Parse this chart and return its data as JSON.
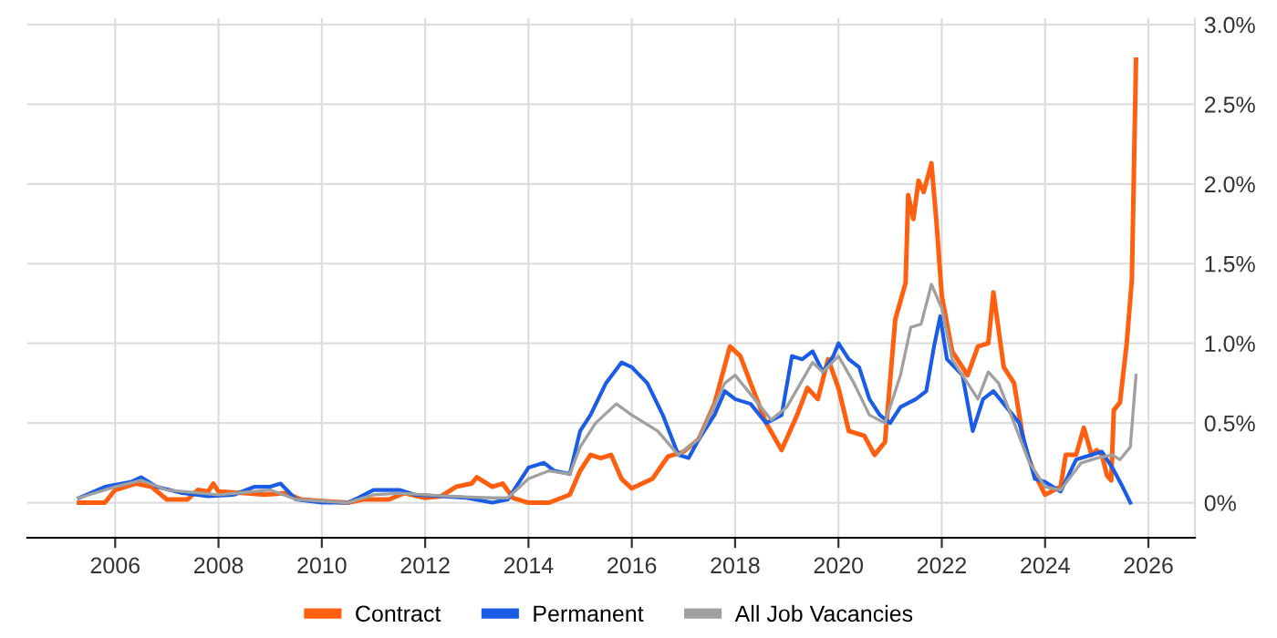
{
  "chart_data": {
    "type": "line",
    "series": [
      {
        "name": "Contract",
        "color": "#ff5f0f",
        "x": [
          2005.3,
          2005.8,
          2006.0,
          2006.4,
          2006.7,
          2007.0,
          2007.4,
          2007.6,
          2007.8,
          2007.9,
          2008.0,
          2008.5,
          2008.9,
          2009.3,
          2009.6,
          2010.0,
          2010.5,
          2010.8,
          2011.3,
          2011.6,
          2012.0,
          2012.3,
          2012.6,
          2012.9,
          2013.0,
          2013.3,
          2013.5,
          2013.7,
          2014.0,
          2014.4,
          2014.8,
          2015.0,
          2015.2,
          2015.4,
          2015.6,
          2015.8,
          2016.0,
          2016.4,
          2016.7,
          2017.0,
          2017.3,
          2017.6,
          2017.9,
          2018.1,
          2018.3,
          2018.6,
          2018.9,
          2019.2,
          2019.4,
          2019.6,
          2019.8,
          2020.0,
          2020.2,
          2020.5,
          2020.7,
          2020.9,
          2021.1,
          2021.3,
          2021.35,
          2021.45,
          2021.55,
          2021.65,
          2021.8,
          2021.9,
          2022.0,
          2022.2,
          2022.5,
          2022.7,
          2022.9,
          2023.0,
          2023.2,
          2023.4,
          2023.6,
          2023.8,
          2024.0,
          2024.3,
          2024.4,
          2024.6,
          2024.75,
          2024.9,
          2025.0,
          2025.1,
          2025.2,
          2025.28,
          2025.33,
          2025.45,
          2025.58,
          2025.68,
          2025.76
        ],
        "values": [
          0,
          0,
          0.08,
          0.12,
          0.1,
          0.02,
          0.02,
          0.08,
          0.07,
          0.12,
          0.07,
          0.06,
          0.05,
          0.06,
          0.02,
          0.01,
          0,
          0.02,
          0.02,
          0.06,
          0.03,
          0.04,
          0.1,
          0.12,
          0.16,
          0.1,
          0.12,
          0.03,
          0,
          0,
          0.05,
          0.2,
          0.3,
          0.28,
          0.3,
          0.15,
          0.09,
          0.15,
          0.29,
          0.32,
          0.4,
          0.62,
          0.98,
          0.92,
          0.75,
          0.5,
          0.33,
          0.55,
          0.72,
          0.65,
          0.9,
          0.72,
          0.45,
          0.42,
          0.3,
          0.38,
          1.15,
          1.38,
          1.93,
          1.78,
          2.02,
          1.95,
          2.13,
          1.75,
          1.3,
          0.95,
          0.8,
          0.98,
          1.0,
          1.32,
          0.85,
          0.75,
          0.35,
          0.18,
          0.05,
          0.1,
          0.3,
          0.3,
          0.47,
          0.3,
          0.33,
          0.3,
          0.17,
          0.14,
          0.58,
          0.63,
          1.0,
          1.4,
          2.78
        ]
      },
      {
        "name": "Permanent",
        "color": "#1a5ce6",
        "x": [
          2005.3,
          2005.8,
          2006.3,
          2006.5,
          2006.8,
          2007.3,
          2007.8,
          2008.3,
          2008.7,
          2009.0,
          2009.2,
          2009.5,
          2010.0,
          2010.5,
          2010.7,
          2011.0,
          2011.5,
          2011.8,
          2012.3,
          2012.8,
          2013.3,
          2013.6,
          2014.0,
          2014.3,
          2014.5,
          2014.8,
          2015.0,
          2015.2,
          2015.5,
          2015.8,
          2016.0,
          2016.3,
          2016.6,
          2016.9,
          2017.1,
          2017.3,
          2017.6,
          2017.8,
          2018.0,
          2018.3,
          2018.6,
          2018.9,
          2019.1,
          2019.3,
          2019.5,
          2019.7,
          2019.9,
          2020.0,
          2020.2,
          2020.4,
          2020.6,
          2020.8,
          2021.0,
          2021.2,
          2021.5,
          2021.7,
          2021.85,
          2021.97,
          2022.1,
          2022.4,
          2022.6,
          2022.8,
          2023.0,
          2023.2,
          2023.5,
          2023.8,
          2024.0,
          2024.3,
          2024.6,
          2024.9,
          2025.1,
          2025.3,
          2025.5,
          2025.65
        ],
        "values": [
          0.03,
          0.1,
          0.13,
          0.16,
          0.1,
          0.06,
          0.04,
          0.05,
          0.1,
          0.1,
          0.12,
          0.02,
          0,
          0,
          0.03,
          0.08,
          0.08,
          0.05,
          0.04,
          0.03,
          0,
          0.02,
          0.22,
          0.25,
          0.2,
          0.18,
          0.45,
          0.55,
          0.75,
          0.88,
          0.85,
          0.75,
          0.55,
          0.3,
          0.28,
          0.4,
          0.55,
          0.7,
          0.65,
          0.62,
          0.5,
          0.55,
          0.92,
          0.9,
          0.95,
          0.82,
          0.92,
          1.0,
          0.9,
          0.85,
          0.65,
          0.55,
          0.5,
          0.6,
          0.65,
          0.7,
          0.98,
          1.17,
          0.9,
          0.8,
          0.45,
          0.65,
          0.7,
          0.62,
          0.5,
          0.15,
          0.13,
          0.07,
          0.27,
          0.3,
          0.32,
          0.22,
          0.1,
          0
        ]
      },
      {
        "name": "All Job Vacancies",
        "color": "#a0a0a0",
        "x": [
          2005.3,
          2006.0,
          2006.5,
          2007.0,
          2008.0,
          2009.0,
          2009.5,
          2010.5,
          2011.0,
          2011.5,
          2012.5,
          2013.3,
          2013.6,
          2014.0,
          2014.4,
          2014.8,
          2015.0,
          2015.3,
          2015.7,
          2016.0,
          2016.5,
          2016.9,
          2017.3,
          2017.8,
          2018.0,
          2018.3,
          2018.7,
          2019.0,
          2019.5,
          2019.7,
          2020.0,
          2020.3,
          2020.6,
          2020.9,
          2021.2,
          2021.4,
          2021.6,
          2021.8,
          2022.0,
          2022.2,
          2022.5,
          2022.7,
          2022.9,
          2023.1,
          2023.4,
          2023.7,
          2024.0,
          2024.3,
          2024.7,
          2025.0,
          2025.3,
          2025.45,
          2025.65,
          2025.76
        ],
        "values": [
          0.03,
          0.1,
          0.14,
          0.08,
          0.05,
          0.08,
          0.02,
          0,
          0.05,
          0.06,
          0.04,
          0.03,
          0.03,
          0.15,
          0.2,
          0.18,
          0.35,
          0.5,
          0.62,
          0.55,
          0.45,
          0.3,
          0.4,
          0.75,
          0.8,
          0.68,
          0.52,
          0.6,
          0.88,
          0.82,
          0.92,
          0.75,
          0.55,
          0.5,
          0.8,
          1.1,
          1.12,
          1.37,
          1.22,
          0.9,
          0.75,
          0.65,
          0.82,
          0.75,
          0.5,
          0.25,
          0.1,
          0.08,
          0.25,
          0.28,
          0.3,
          0.27,
          0.35,
          0.8
        ]
      }
    ],
    "xlim": [
      2004.3,
      2026.9
    ],
    "xticks": [
      2006,
      2008,
      2010,
      2012,
      2014,
      2016,
      2018,
      2020,
      2022,
      2024,
      2026
    ],
    "ylim": [
      -0.22,
      3.04
    ],
    "yticks": [
      {
        "value": 0,
        "label": "0%"
      },
      {
        "value": 0.5,
        "label": "0.5%"
      },
      {
        "value": 1,
        "label": "1.0%"
      },
      {
        "value": 1.5,
        "label": "1.5%"
      },
      {
        "value": 2,
        "label": "2.0%"
      },
      {
        "value": 2.5,
        "label": "2.5%"
      },
      {
        "value": 3,
        "label": "3.0%"
      }
    ],
    "grid": true,
    "legend": "bottom",
    "line_style": "solid",
    "marker": "none"
  }
}
